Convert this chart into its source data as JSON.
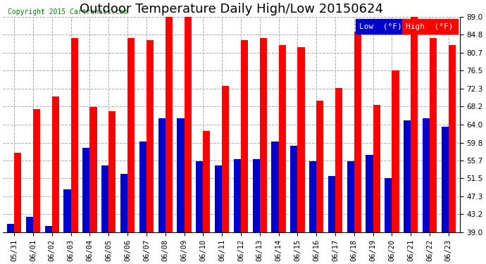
{
  "title": "Outdoor Temperature Daily High/Low 20150624",
  "copyright": "Copyright 2015 Cartronics.com",
  "dates": [
    "05/31",
    "06/01",
    "06/02",
    "06/03",
    "06/04",
    "06/05",
    "06/06",
    "06/07",
    "06/08",
    "06/09",
    "06/10",
    "06/11",
    "06/12",
    "06/13",
    "06/14",
    "06/15",
    "06/16",
    "06/17",
    "06/18",
    "06/19",
    "06/20",
    "06/21",
    "06/22",
    "06/23"
  ],
  "highs": [
    57.5,
    67.5,
    70.5,
    84.0,
    68.0,
    67.0,
    84.0,
    83.5,
    89.0,
    89.0,
    62.5,
    73.0,
    83.5,
    84.0,
    82.5,
    82.0,
    69.5,
    72.5,
    85.5,
    68.5,
    76.5,
    89.0,
    84.0,
    82.5
  ],
  "lows": [
    41.0,
    42.5,
    40.5,
    49.0,
    58.5,
    54.5,
    52.5,
    60.0,
    65.5,
    65.5,
    55.5,
    54.5,
    56.0,
    56.0,
    60.0,
    59.0,
    55.5,
    52.0,
    55.5,
    57.0,
    51.5,
    65.0,
    65.5,
    63.5
  ],
  "high_color": "#ff0000",
  "low_color": "#0000cc",
  "background_color": "#ffffff",
  "grid_color": "#aaaaaa",
  "ylim": [
    39.0,
    89.0
  ],
  "yticks": [
    39.0,
    43.2,
    47.3,
    51.5,
    55.7,
    59.8,
    64.0,
    68.2,
    72.3,
    76.5,
    80.7,
    84.8,
    89.0
  ],
  "bar_width": 0.38,
  "title_fontsize": 13,
  "tick_fontsize": 7.5,
  "legend_fontsize": 8
}
